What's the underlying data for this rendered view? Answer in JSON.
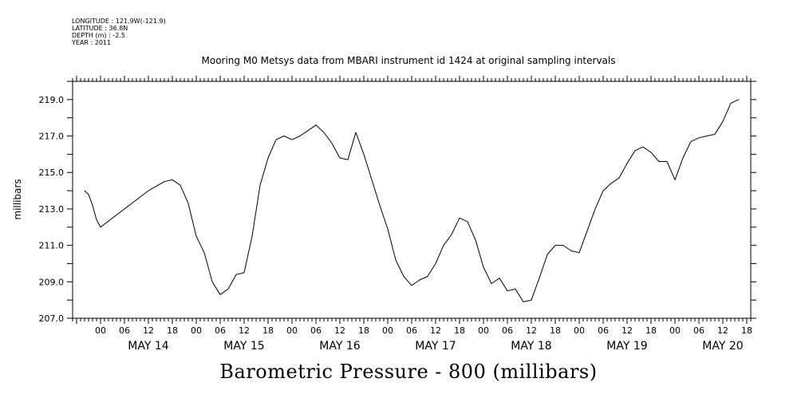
{
  "meta": {
    "longitude": "LONGITUDE : 121.9W(-121.9)",
    "latitude": "LATITUDE : 36.8N",
    "depth": "DEPTH (m) : -2.5",
    "year": "YEAR : 2011"
  },
  "chart_data": {
    "type": "line",
    "title": "Mooring M0 Metsys data from MBARI instrument id 1424 at original sampling intervals",
    "xlabel": "Barometric Pressure - 800 (millibars)",
    "ylabel": "millibars",
    "ylim": [
      207.0,
      220.0
    ],
    "yticks": [
      "207.0",
      "209.0",
      "211.0",
      "213.0",
      "215.0",
      "217.0",
      "219.0"
    ],
    "xlim_hours": [
      -7,
      163
    ],
    "xticks_hours": [
      "00",
      "06",
      "12",
      "18",
      "00",
      "06",
      "12",
      "18",
      "00",
      "06",
      "12",
      "18",
      "00",
      "06",
      "12",
      "18",
      "00",
      "06",
      "12",
      "18",
      "00",
      "06",
      "12",
      "18",
      "00",
      "06",
      "12",
      "18"
    ],
    "day_labels": [
      "MAY 14",
      "MAY 15",
      "MAY 16",
      "MAY 17",
      "MAY 18",
      "MAY 19",
      "MAY 20"
    ],
    "grid": false,
    "series": [
      {
        "x": [
          -4,
          -3,
          -2,
          -1,
          0,
          12,
          16,
          18,
          20,
          22,
          24,
          26,
          28,
          30,
          32,
          34,
          36,
          38,
          40,
          42,
          44,
          46,
          48,
          50,
          52,
          54,
          56,
          58,
          60,
          62,
          64,
          66,
          68,
          70,
          72,
          74,
          76,
          78,
          80,
          82,
          84,
          86,
          88,
          90,
          92,
          94,
          96,
          98,
          100,
          102,
          104,
          106,
          108,
          110,
          112,
          114,
          116,
          118,
          120,
          122,
          124,
          126,
          128,
          130,
          132,
          134,
          136,
          138,
          140,
          142,
          144,
          146,
          148,
          150,
          152,
          154,
          156,
          158,
          160
        ],
        "y": [
          214.0,
          213.8,
          213.2,
          212.4,
          212.0,
          214.0,
          214.5,
          214.6,
          214.3,
          213.3,
          211.5,
          210.6,
          209.0,
          208.3,
          208.6,
          209.4,
          209.5,
          211.5,
          214.3,
          215.8,
          216.8,
          217.0,
          216.8,
          217.0,
          217.3,
          217.6,
          217.2,
          216.6,
          215.8,
          215.7,
          217.2,
          216.0,
          214.6,
          213.2,
          211.9,
          210.2,
          209.3,
          208.8,
          209.1,
          209.3,
          210.0,
          211.0,
          211.6,
          212.5,
          212.3,
          211.3,
          209.8,
          208.9,
          209.2,
          208.5,
          208.6,
          207.9,
          208.0,
          209.2,
          210.5,
          211.0,
          211.0,
          210.7,
          210.6,
          211.8,
          213.0,
          214.0,
          214.4,
          214.7,
          215.5,
          216.2,
          216.4,
          216.1,
          215.6,
          215.6,
          214.6,
          215.8,
          216.7,
          216.9,
          217.0,
          217.1,
          217.8,
          218.8,
          219.0
        ]
      }
    ]
  }
}
